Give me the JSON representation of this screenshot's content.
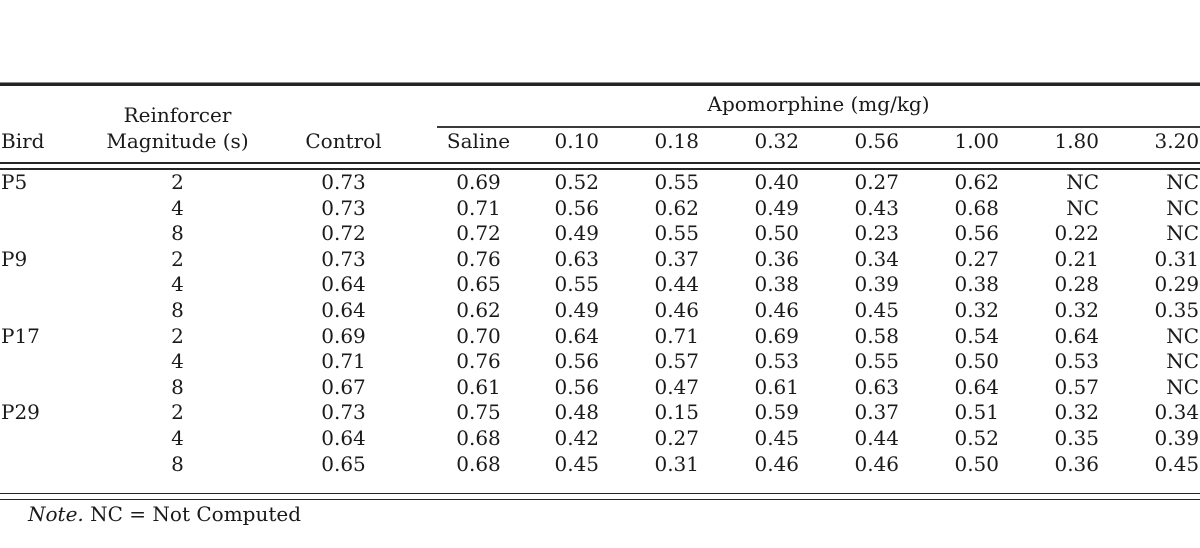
{
  "table": {
    "spanner_label": "Apomorphine (mg/kg)",
    "columns": {
      "bird": "Bird",
      "magnitude_line1": "Reinforcer",
      "magnitude_line2": "Magnitude (s)",
      "control": "Control",
      "saline": "Saline",
      "doses": [
        "0.10",
        "0.18",
        "0.32",
        "0.56",
        "1.00",
        "1.80",
        "3.20"
      ]
    },
    "rows": [
      {
        "bird": "P5",
        "magnitude": "2",
        "control": "0.73",
        "saline": "0.69",
        "doses": [
          "0.52",
          "0.55",
          "0.40",
          "0.27",
          "0.62",
          "NC",
          "NC"
        ]
      },
      {
        "bird": "",
        "magnitude": "4",
        "control": "0.73",
        "saline": "0.71",
        "doses": [
          "0.56",
          "0.62",
          "0.49",
          "0.43",
          "0.68",
          "NC",
          "NC"
        ]
      },
      {
        "bird": "",
        "magnitude": "8",
        "control": "0.72",
        "saline": "0.72",
        "doses": [
          "0.49",
          "0.55",
          "0.50",
          "0.23",
          "0.56",
          "0.22",
          "NC"
        ]
      },
      {
        "bird": "P9",
        "magnitude": "2",
        "control": "0.73",
        "saline": "0.76",
        "doses": [
          "0.63",
          "0.37",
          "0.36",
          "0.34",
          "0.27",
          "0.21",
          "0.31"
        ]
      },
      {
        "bird": "",
        "magnitude": "4",
        "control": "0.64",
        "saline": "0.65",
        "doses": [
          "0.55",
          "0.44",
          "0.38",
          "0.39",
          "0.38",
          "0.28",
          "0.29"
        ]
      },
      {
        "bird": "",
        "magnitude": "8",
        "control": "0.64",
        "saline": "0.62",
        "doses": [
          "0.49",
          "0.46",
          "0.46",
          "0.45",
          "0.32",
          "0.32",
          "0.35"
        ]
      },
      {
        "bird": "P17",
        "magnitude": "2",
        "control": "0.69",
        "saline": "0.70",
        "doses": [
          "0.64",
          "0.71",
          "0.69",
          "0.58",
          "0.54",
          "0.64",
          "NC"
        ]
      },
      {
        "bird": "",
        "magnitude": "4",
        "control": "0.71",
        "saline": "0.76",
        "doses": [
          "0.56",
          "0.57",
          "0.53",
          "0.55",
          "0.50",
          "0.53",
          "NC"
        ]
      },
      {
        "bird": "",
        "magnitude": "8",
        "control": "0.67",
        "saline": "0.61",
        "doses": [
          "0.56",
          "0.47",
          "0.61",
          "0.63",
          "0.64",
          "0.57",
          "NC"
        ]
      },
      {
        "bird": "P29",
        "magnitude": "2",
        "control": "0.73",
        "saline": "0.75",
        "doses": [
          "0.48",
          "0.15",
          "0.59",
          "0.37",
          "0.51",
          "0.32",
          "0.34"
        ]
      },
      {
        "bird": "",
        "magnitude": "4",
        "control": "0.64",
        "saline": "0.68",
        "doses": [
          "0.42",
          "0.27",
          "0.45",
          "0.44",
          "0.52",
          "0.35",
          "0.39"
        ]
      },
      {
        "bird": "",
        "magnitude": "8",
        "control": "0.65",
        "saline": "0.68",
        "doses": [
          "0.45",
          "0.31",
          "0.46",
          "0.46",
          "0.50",
          "0.36",
          "0.45"
        ]
      }
    ],
    "note": {
      "prefix": "Note.",
      "text": " NC = Not Computed"
    }
  },
  "colors": {
    "text": "#1a1a1a",
    "rule_dark": "#262626",
    "rule_light": "#8d8d8d"
  }
}
